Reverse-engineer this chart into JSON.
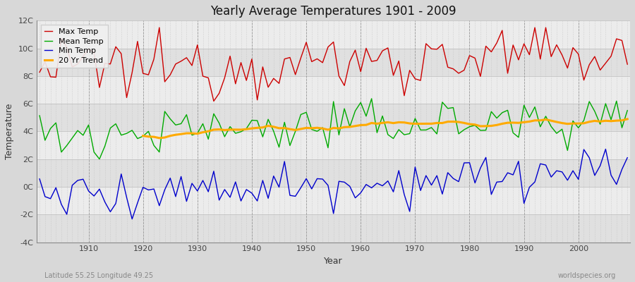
{
  "title": "Yearly Average Temperatures 1901 - 2009",
  "xlabel": "Year",
  "ylabel": "Temperature",
  "lat_lon_text": "Latitude 55.25 Longitude 49.25",
  "credit_text": "worldspecies.org",
  "fig_bg_color": "#d8d8d8",
  "plot_bg_color": "#e8e8e8",
  "band_colors": [
    "#e0e0e0",
    "#ececec"
  ],
  "grid_color": "#c0c0c0",
  "year_start": 1901,
  "year_end": 2009,
  "max_temp_color": "#cc0000",
  "mean_temp_color": "#00aa00",
  "min_temp_color": "#0000cc",
  "trend_color": "#ffaa00",
  "legend_labels": [
    "Max Temp",
    "Mean Temp",
    "Min Temp",
    "20 Yr Trend"
  ],
  "ylim": [
    -4,
    12
  ],
  "yticks": [
    -4,
    -2,
    0,
    2,
    4,
    6,
    8,
    10,
    12
  ],
  "ytick_labels": [
    "-4C",
    "-2C",
    "0C",
    "2C",
    "4C",
    "6C",
    "8C",
    "10C",
    "12C"
  ]
}
